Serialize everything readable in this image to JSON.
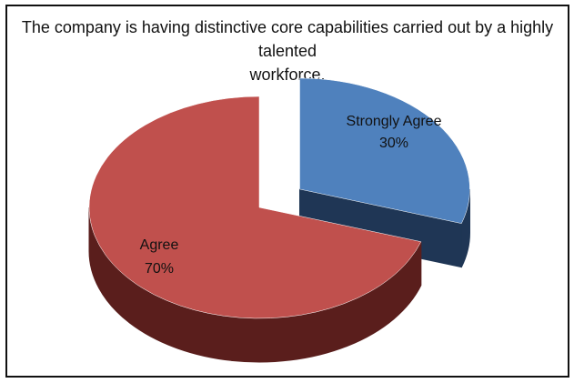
{
  "chart_data": {
    "type": "pie",
    "title_lines": [
      "The company is having distinctive core capabilities carried out by a highly talented",
      "workforce."
    ],
    "slices": [
      {
        "label": "Strongly Agree",
        "value": 30,
        "value_label": "30%",
        "color": "#4F81BD",
        "side_color": "#1F3655",
        "exploded": true
      },
      {
        "label": "Agree",
        "value": 70,
        "value_label": "70%",
        "color": "#C0504D",
        "side_color": "#5A1E1C",
        "exploded": false
      }
    ],
    "three_d": true,
    "legend": "none"
  }
}
